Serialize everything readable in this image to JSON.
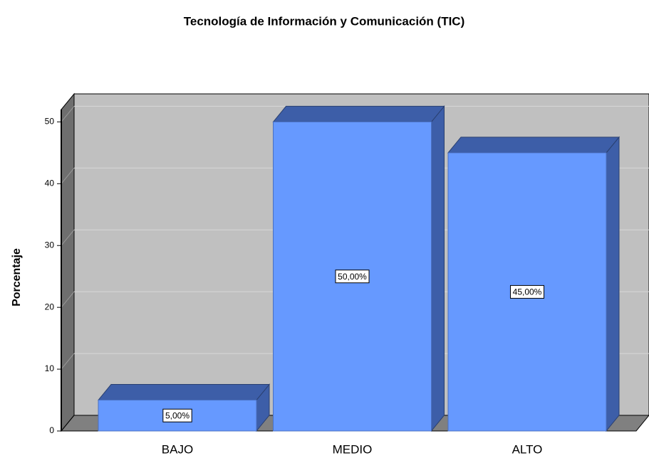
{
  "chart_data": {
    "type": "bar3d",
    "title": "Tecnología de Información y Comunicación (TIC)",
    "y_label": "Porcentaje",
    "categories": [
      "BAJO",
      "MEDIO",
      "ALTO"
    ],
    "values": [
      5,
      50,
      45
    ],
    "value_labels": [
      "5,00%",
      "50,00%",
      "45,00%"
    ],
    "color": "#6699ff",
    "ylim": [
      0,
      52
    ],
    "yticks": [
      0,
      10,
      20,
      30,
      40,
      50
    ],
    "grid": true
  }
}
